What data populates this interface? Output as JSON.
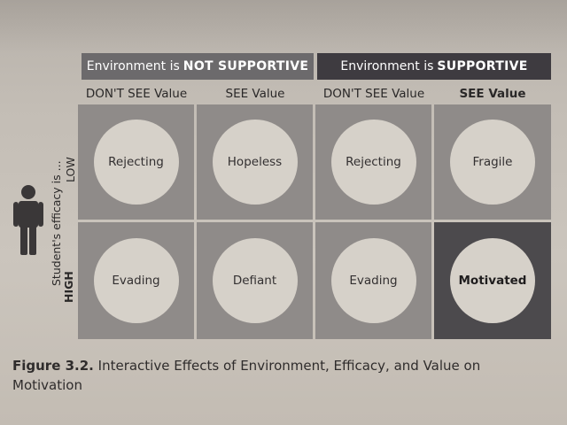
{
  "header": {
    "not_supportive_prefix": "Environment is",
    "not_supportive_strong": "NOT SUPPORTIVE",
    "supportive_prefix": "Environment is",
    "supportive_strong": "SUPPORTIVE"
  },
  "columns": [
    {
      "label": "DON'T SEE Value",
      "bold": false
    },
    {
      "label": "SEE Value",
      "bold": false
    },
    {
      "label": "DON'T SEE Value",
      "bold": false
    },
    {
      "label": "SEE Value",
      "bold": true
    }
  ],
  "side": {
    "efficacy_label": "Student's efficacy is ...",
    "low_label": "LOW",
    "high_label": "HIGH",
    "icon": "person-icon"
  },
  "rows": {
    "low": [
      "Rejecting",
      "Hopeless",
      "Rejecting",
      "Fragile"
    ],
    "high": [
      "Evading",
      "Defiant",
      "Evading",
      "Motivated"
    ]
  },
  "caption": {
    "figure": "Figure 3.2.",
    "text": "Interactive Effects of Environment, Efficacy, and Value on Motivation"
  },
  "colors": {
    "not_supportive_band": "#6c6a6c",
    "supportive_band": "#3e3b40",
    "cell": "#8f8b89",
    "highlight_cell": "#4c4a4d",
    "circle": "#d6d1c9"
  }
}
